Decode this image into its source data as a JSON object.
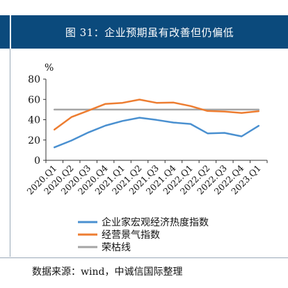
{
  "header": {
    "title": "图 31：企业预期虽有改善但仍偏低"
  },
  "source": "数据来源：wind，中诚信国际整理",
  "colors": {
    "header_bg": "#0b4a7c",
    "series1": "#4a90d0",
    "series2": "#ed7d31",
    "series3": "#a5a5a5"
  },
  "chart_data": {
    "type": "line",
    "ylabel": "%",
    "ylim": [
      0,
      80
    ],
    "yticks": [
      0,
      20,
      40,
      60,
      80
    ],
    "categories": [
      "2020.Q1",
      "2020.Q2",
      "2020.Q3",
      "2020.Q4",
      "2021.Q1",
      "2021.Q2",
      "2021.Q3",
      "2021.Q4",
      "2022.Q1",
      "2022.Q2",
      "2022.Q3",
      "2022.Q4",
      "2023.Q1"
    ],
    "legend_position": "bottom",
    "series": [
      {
        "name": "企业家宏观经济热度指数",
        "color": "#4a90d0",
        "values": [
          12.8,
          19.5,
          27.5,
          34.2,
          38.8,
          42.0,
          39.8,
          37.2,
          35.8,
          26.5,
          27.0,
          23.6,
          34.0
        ]
      },
      {
        "name": "经营景气指数",
        "color": "#ed7d31",
        "values": [
          30.2,
          42.6,
          49.0,
          55.6,
          56.6,
          59.8,
          56.6,
          56.9,
          53.5,
          48.6,
          48.1,
          46.6,
          48.4
        ]
      },
      {
        "name": "荣枯线",
        "color": "#a5a5a5",
        "values": [
          50,
          50,
          50,
          50,
          50,
          50,
          50,
          50,
          50,
          50,
          50,
          50,
          50
        ]
      }
    ]
  }
}
